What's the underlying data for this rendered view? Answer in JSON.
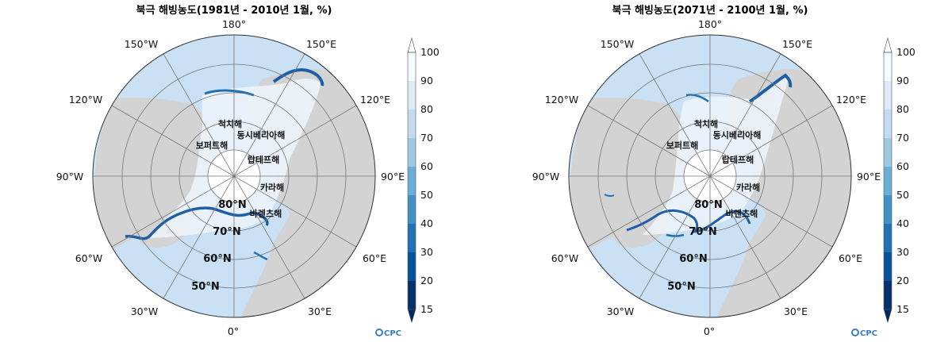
{
  "maps": [
    {
      "title": "북극 해빙농도(1981년 - 2010년 1월, %)",
      "lon_labels": {
        "n180": "180°",
        "w150": "150°W",
        "e150": "150°E",
        "w120": "120°W",
        "e120": "120°E",
        "w90": "90°W",
        "e90": "90°E",
        "w60": "60°W",
        "e60": "60°E",
        "w30": "30°W",
        "e30": "30°E",
        "n0": "0°"
      },
      "lat_labels": [
        "80°N",
        "70°N",
        "60°N",
        "50°N"
      ],
      "seas": [
        "척치해",
        "동시베리아해",
        "보퍼트해",
        "랍테프해",
        "카라해",
        "바렌츠해"
      ],
      "colorbar_ticks": [
        "100",
        "90",
        "80",
        "70",
        "60",
        "50",
        "40",
        "30",
        "20",
        "15"
      ],
      "logo": "CPC"
    },
    {
      "title": "북극 해빙농도(2071년 - 2100년 1월, %)",
      "lon_labels": {
        "n180": "180°",
        "w150": "150°W",
        "e150": "150°E",
        "w120": "120°W",
        "e120": "120°E",
        "w90": "90°W",
        "e90": "90°E",
        "w60": "60°W",
        "e60": "60°E",
        "w30": "30°W",
        "e30": "30°E",
        "n0": "0°"
      },
      "lat_labels": [
        "80°N",
        "70°N",
        "60°N",
        "50°N"
      ],
      "seas": [
        "척치해",
        "동시베리아해",
        "보퍼트해",
        "랍테프해",
        "카라해",
        "바렌츠해"
      ],
      "colorbar_ticks": [
        "100",
        "90",
        "80",
        "70",
        "60",
        "50",
        "40",
        "30",
        "20",
        "15"
      ],
      "logo": "CPC"
    }
  ],
  "colors": {
    "ocean": "#c9e0f5",
    "land": "#d3d3d3",
    "ice_high": "#eef4fb",
    "ice_edge": "#1f5fa5",
    "grid": "#777777",
    "colorbar": [
      "#f7fbff",
      "#deebf7",
      "#c6dbef",
      "#9ecae1",
      "#6baed6",
      "#4292c6",
      "#2171b5",
      "#08519c",
      "#08306b",
      "#062a5c"
    ]
  }
}
